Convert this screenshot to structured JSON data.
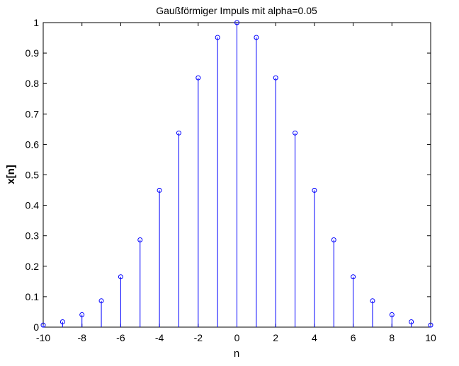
{
  "chart_data": {
    "type": "stem",
    "title": "Gaußförmiger Impuls mit alpha=0.05",
    "xlabel": "n",
    "ylabel": "x[n]",
    "xlim": [
      -10,
      10
    ],
    "ylim": [
      0,
      1
    ],
    "x_ticks": [
      "-10",
      "-8",
      "-6",
      "-4",
      "-2",
      "0",
      "2",
      "4",
      "6",
      "8",
      "10"
    ],
    "y_ticks": [
      "0",
      "0.1",
      "0.2",
      "0.3",
      "0.4",
      "0.5",
      "0.6",
      "0.7",
      "0.8",
      "0.9",
      "1"
    ],
    "x_tick_values": [
      -10,
      -8,
      -6,
      -4,
      -2,
      0,
      2,
      4,
      6,
      8,
      10
    ],
    "y_tick_values": [
      0,
      0.1,
      0.2,
      0.3,
      0.4,
      0.5,
      0.6,
      0.7,
      0.8,
      0.9,
      1
    ],
    "grid": false,
    "series": [
      {
        "color": "#0000ff",
        "marker": "circle",
        "x": [
          -10,
          -9,
          -8,
          -7,
          -6,
          -5,
          -4,
          -3,
          -2,
          -1,
          0,
          1,
          2,
          3,
          4,
          5,
          6,
          7,
          8,
          9,
          10
        ],
        "y": [
          0.0067,
          0.0174,
          0.0408,
          0.0863,
          0.1653,
          0.2865,
          0.4493,
          0.6376,
          0.8187,
          0.9512,
          1.0,
          0.9512,
          0.8187,
          0.6376,
          0.4493,
          0.2865,
          0.1653,
          0.0863,
          0.0408,
          0.0174,
          0.0067
        ]
      }
    ]
  }
}
